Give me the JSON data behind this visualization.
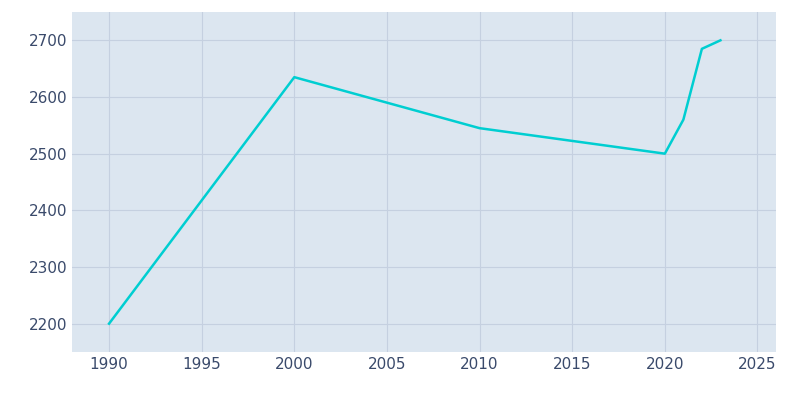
{
  "years": [
    1990,
    2000,
    2010,
    2020,
    2021,
    2022,
    2023
  ],
  "population": [
    2200,
    2635,
    2545,
    2500,
    2560,
    2685,
    2700
  ],
  "line_color": "#00CED1",
  "fig_bg_color": "#ffffff",
  "plot_bg_color": "#dce6f0",
  "line_width": 1.8,
  "xlim": [
    1988,
    2026
  ],
  "ylim": [
    2150,
    2750
  ],
  "xticks": [
    1990,
    1995,
    2000,
    2005,
    2010,
    2015,
    2020,
    2025
  ],
  "yticks": [
    2200,
    2300,
    2400,
    2500,
    2600,
    2700
  ],
  "tick_label_color": "#3a4a6b",
  "grid_color": "#c5d0e0"
}
